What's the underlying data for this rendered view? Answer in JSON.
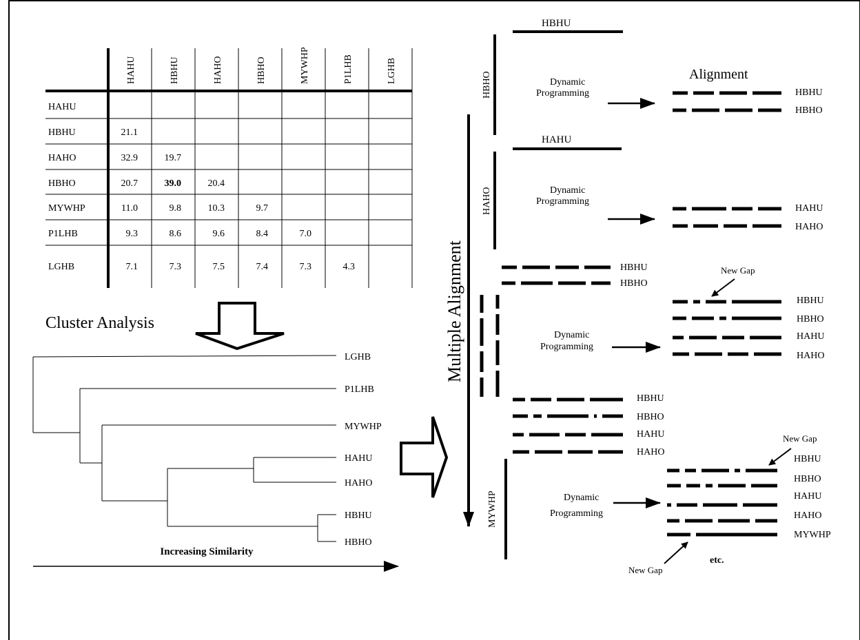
{
  "matrix": {
    "labels": [
      "HAHU",
      "HBHU",
      "HAHO",
      "HBHO",
      "MYWHP",
      "P1LHB",
      "LGHB"
    ],
    "rows": [
      [],
      [
        "21.1"
      ],
      [
        "32.9",
        "19.7"
      ],
      [
        "20.7",
        "39.0",
        "20.4"
      ],
      [
        "11.0",
        "9.8",
        "10.3",
        "9.7"
      ],
      [
        "9.3",
        "8.6",
        "9.6",
        "8.4",
        "7.0"
      ],
      [
        "7.1",
        "7.3",
        "7.5",
        "7.4",
        "7.3",
        "4.3"
      ]
    ],
    "bold_value": "39.0"
  },
  "cluster": {
    "title": "Cluster Analysis",
    "leaves": [
      "LGHB",
      "P1LHB",
      "MYWHP",
      "HAHU",
      "HAHO",
      "HBHU",
      "HBHO"
    ],
    "axis_label": "Increasing Similarity"
  },
  "multiple_alignment_label": "Multiple Alignment",
  "alignment_title": "Alignment",
  "dp_label_line1": "Dynamic",
  "dp_label_line2": "Programming",
  "new_gap": "New Gap",
  "etc": "etc.",
  "steps": [
    {
      "top_seq": "HBHU",
      "side_seq": "HBHO",
      "result": [
        "HBHU",
        "HBHO"
      ]
    },
    {
      "top_seq": "HAHU",
      "side_seq": "HAHO",
      "result": [
        "HAHU",
        "HAHO"
      ]
    },
    {
      "inputs": [
        "HBHU",
        "HBHO"
      ],
      "result": [
        "HBHU",
        "HBHO",
        "HAHU",
        "HAHO"
      ]
    },
    {
      "inputs": [
        "HBHU",
        "HBHO",
        "HAHU",
        "HAHO"
      ],
      "side_seq": "MYWHP",
      "result": [
        "HBHU",
        "HBHO",
        "HAHU",
        "HAHO",
        "MYWHP"
      ]
    }
  ]
}
